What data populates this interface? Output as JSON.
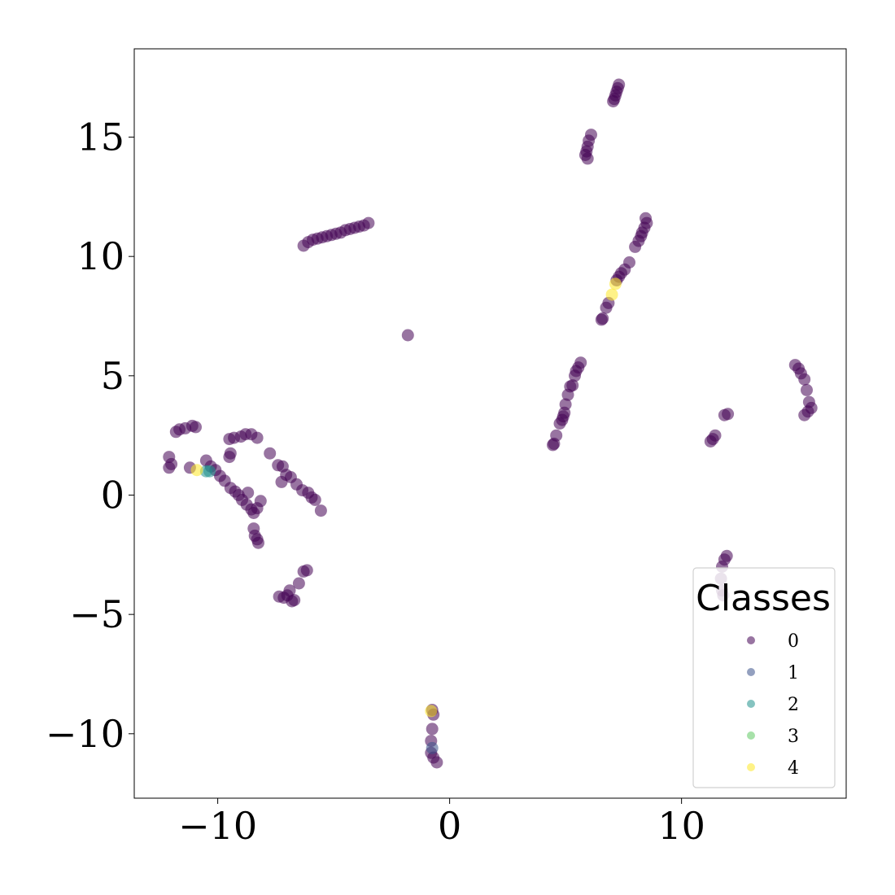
{
  "chart_data": {
    "type": "scatter",
    "title": "",
    "xlabel": "",
    "ylabel": "",
    "xlim": [
      -13.6,
      17.1
    ],
    "ylim": [
      -12.7,
      18.7
    ],
    "xticks": [
      -10,
      0,
      10
    ],
    "yticks": [
      -10,
      -5,
      0,
      5,
      10,
      15
    ],
    "x_tick_labels": [
      "−10",
      "0",
      "10"
    ],
    "y_tick_labels": [
      "−10",
      "−5",
      "0",
      "5",
      "10",
      "15"
    ],
    "grid": false,
    "legend": {
      "title": "Classes",
      "placement": "lower-right",
      "entries": [
        "0",
        "1",
        "2",
        "3",
        "4"
      ]
    },
    "class_colors": [
      "#440154",
      "#3b528b",
      "#21918c",
      "#5ec962",
      "#fde725"
    ],
    "series": [
      {
        "name": "0",
        "points": [
          [
            7.3,
            17.2
          ],
          [
            7.25,
            17.05
          ],
          [
            7.2,
            16.9
          ],
          [
            7.15,
            16.75
          ],
          [
            7.1,
            16.6
          ],
          [
            7.05,
            16.5
          ],
          [
            6.1,
            15.1
          ],
          [
            6.0,
            14.85
          ],
          [
            5.95,
            14.6
          ],
          [
            5.9,
            14.4
          ],
          [
            5.85,
            14.25
          ],
          [
            5.95,
            14.1
          ],
          [
            8.45,
            11.6
          ],
          [
            8.5,
            11.4
          ],
          [
            8.4,
            11.2
          ],
          [
            8.3,
            11.0
          ],
          [
            8.25,
            10.85
          ],
          [
            8.15,
            10.65
          ],
          [
            8.0,
            10.4
          ],
          [
            7.75,
            9.75
          ],
          [
            7.55,
            9.45
          ],
          [
            7.4,
            9.3
          ],
          [
            7.3,
            9.15
          ],
          [
            7.2,
            9.0
          ],
          [
            6.85,
            8.05
          ],
          [
            6.75,
            7.85
          ],
          [
            6.6,
            7.4
          ],
          [
            6.55,
            7.35
          ],
          [
            -3.5,
            11.4
          ],
          [
            -3.7,
            11.3
          ],
          [
            -3.9,
            11.25
          ],
          [
            -4.1,
            11.2
          ],
          [
            -4.3,
            11.15
          ],
          [
            -4.5,
            11.1
          ],
          [
            -4.7,
            11.0
          ],
          [
            -4.9,
            10.95
          ],
          [
            -5.1,
            10.9
          ],
          [
            -5.3,
            10.85
          ],
          [
            -5.5,
            10.8
          ],
          [
            -5.7,
            10.75
          ],
          [
            -5.9,
            10.7
          ],
          [
            -6.1,
            10.6
          ],
          [
            -6.3,
            10.45
          ],
          [
            -1.8,
            6.7
          ],
          [
            5.65,
            5.55
          ],
          [
            5.55,
            5.35
          ],
          [
            5.45,
            5.2
          ],
          [
            5.4,
            5.0
          ],
          [
            5.3,
            4.6
          ],
          [
            5.2,
            4.55
          ],
          [
            5.1,
            4.2
          ],
          [
            5.0,
            3.8
          ],
          [
            4.95,
            3.45
          ],
          [
            4.9,
            3.3
          ],
          [
            4.85,
            3.15
          ],
          [
            4.75,
            3.0
          ],
          [
            4.6,
            2.5
          ],
          [
            4.5,
            2.15
          ],
          [
            4.45,
            2.1
          ],
          [
            14.9,
            5.45
          ],
          [
            15.05,
            5.3
          ],
          [
            15.15,
            5.1
          ],
          [
            15.3,
            4.85
          ],
          [
            15.4,
            4.4
          ],
          [
            15.5,
            3.9
          ],
          [
            15.6,
            3.65
          ],
          [
            15.45,
            3.5
          ],
          [
            15.3,
            3.35
          ],
          [
            11.45,
            2.5
          ],
          [
            11.35,
            2.35
          ],
          [
            11.25,
            2.25
          ],
          [
            12.0,
            3.4
          ],
          [
            11.85,
            3.35
          ],
          [
            11.95,
            -2.55
          ],
          [
            11.85,
            -2.7
          ],
          [
            11.75,
            -3.0
          ],
          [
            11.7,
            -3.5
          ],
          [
            11.75,
            -4.0
          ],
          [
            11.8,
            -4.2
          ],
          [
            -0.75,
            -9.0
          ],
          [
            -0.7,
            -9.2
          ],
          [
            -0.75,
            -9.8
          ],
          [
            -0.8,
            -10.3
          ],
          [
            -0.8,
            -10.8
          ],
          [
            -0.7,
            -11.0
          ],
          [
            -0.55,
            -11.2
          ],
          [
            -12.1,
            1.6
          ],
          [
            -12.0,
            1.3
          ],
          [
            -12.1,
            1.15
          ],
          [
            -11.2,
            1.15
          ],
          [
            -11.8,
            2.65
          ],
          [
            -11.65,
            2.75
          ],
          [
            -11.4,
            2.8
          ],
          [
            -11.1,
            2.9
          ],
          [
            -10.95,
            2.85
          ],
          [
            -10.5,
            1.45
          ],
          [
            -10.3,
            1.2
          ],
          [
            -10.1,
            1.05
          ],
          [
            -9.9,
            0.8
          ],
          [
            -9.7,
            0.6
          ],
          [
            -9.45,
            0.3
          ],
          [
            -9.25,
            0.15
          ],
          [
            -9.1,
            0.0
          ],
          [
            -8.95,
            -0.2
          ],
          [
            -8.75,
            -0.4
          ],
          [
            -8.55,
            -0.6
          ],
          [
            -8.45,
            -0.75
          ],
          [
            -8.3,
            -0.55
          ],
          [
            -8.15,
            -0.25
          ],
          [
            -9.5,
            2.35
          ],
          [
            -9.3,
            2.4
          ],
          [
            -9.0,
            2.45
          ],
          [
            -8.8,
            2.55
          ],
          [
            -8.55,
            2.55
          ],
          [
            -8.3,
            2.4
          ],
          [
            -9.45,
            1.75
          ],
          [
            -9.5,
            1.6
          ],
          [
            -8.7,
            0.1
          ],
          [
            -7.75,
            1.75
          ],
          [
            -7.4,
            1.25
          ],
          [
            -7.2,
            1.2
          ],
          [
            -7.05,
            0.85
          ],
          [
            -6.85,
            0.75
          ],
          [
            -7.25,
            0.55
          ],
          [
            -6.6,
            0.45
          ],
          [
            -6.35,
            0.2
          ],
          [
            -6.1,
            0.1
          ],
          [
            -5.95,
            -0.1
          ],
          [
            -5.8,
            -0.2
          ],
          [
            -5.55,
            -0.65
          ],
          [
            -8.45,
            -1.4
          ],
          [
            -8.4,
            -1.7
          ],
          [
            -8.3,
            -1.85
          ],
          [
            -8.25,
            -2.0
          ],
          [
            -7.35,
            -4.25
          ],
          [
            -7.15,
            -4.3
          ],
          [
            -7.0,
            -4.2
          ],
          [
            -6.9,
            -4.0
          ],
          [
            -6.8,
            -4.45
          ],
          [
            -6.7,
            -4.4
          ],
          [
            -6.5,
            -3.7
          ],
          [
            -6.3,
            -3.2
          ],
          [
            -6.15,
            -3.15
          ]
        ]
      },
      {
        "name": "1",
        "points": [
          [
            -0.75,
            -10.6
          ]
        ]
      },
      {
        "name": "2",
        "points": [
          [
            -10.5,
            1.0
          ],
          [
            -10.35,
            1.0
          ]
        ]
      },
      {
        "name": "3",
        "points": []
      },
      {
        "name": "4",
        "points": [
          [
            7.0,
            8.4
          ],
          [
            7.15,
            8.85
          ],
          [
            -10.9,
            1.05
          ],
          [
            -0.8,
            -9.05
          ]
        ]
      }
    ]
  }
}
